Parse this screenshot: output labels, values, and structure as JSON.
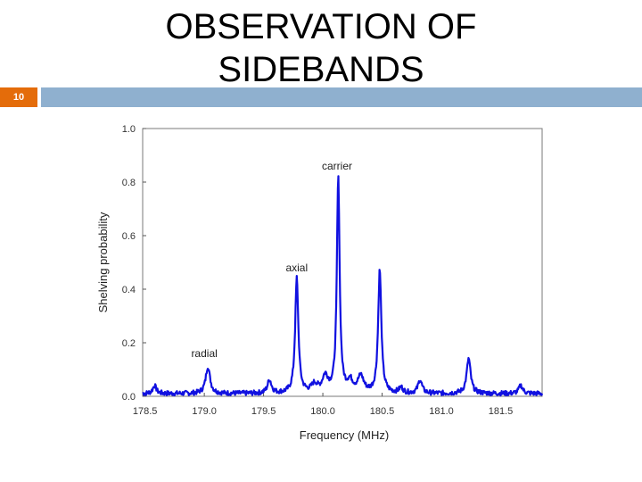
{
  "slide": {
    "title": "OBSERVATION OF SIDEBANDS",
    "number": "10",
    "accent_color": "#e46c0a",
    "bar_color": "#8fb0cf"
  },
  "chart_data": {
    "type": "line",
    "title": "",
    "xlabel": "Frequency (MHz)",
    "ylabel": "Shelving probability",
    "xlim": [
      178.48,
      181.85
    ],
    "ylim": [
      0.0,
      1.0
    ],
    "xticks": [
      178.5,
      179.0,
      179.5,
      180.0,
      180.5,
      181.0,
      181.5
    ],
    "xtick_labels": [
      "178.5",
      "179.0",
      "179.5",
      "180.0",
      "180.5",
      "181.0",
      "181.5"
    ],
    "yticks": [
      0.0,
      0.2,
      0.4,
      0.6,
      0.8,
      1.0
    ],
    "ytick_labels": [
      "0.0",
      "0.2",
      "0.4",
      "0.6",
      "0.8",
      "1.0"
    ],
    "grid": false,
    "line_color": "#1010e0",
    "baseline": 0.01,
    "peaks": [
      {
        "x": 178.58,
        "y": 0.03,
        "width": 0.018
      },
      {
        "x": 179.03,
        "y": 0.1,
        "width": 0.022
      },
      {
        "x": 179.55,
        "y": 0.05,
        "width": 0.02
      },
      {
        "x": 179.78,
        "y": 0.43,
        "width": 0.016
      },
      {
        "x": 179.93,
        "y": 0.03,
        "width": 0.03
      },
      {
        "x": 180.02,
        "y": 0.06,
        "width": 0.03
      },
      {
        "x": 180.13,
        "y": 0.8,
        "width": 0.014
      },
      {
        "x": 180.23,
        "y": 0.04,
        "width": 0.03
      },
      {
        "x": 180.32,
        "y": 0.06,
        "width": 0.03
      },
      {
        "x": 180.48,
        "y": 0.46,
        "width": 0.016
      },
      {
        "x": 180.66,
        "y": 0.02,
        "width": 0.02
      },
      {
        "x": 180.82,
        "y": 0.05,
        "width": 0.02
      },
      {
        "x": 181.23,
        "y": 0.13,
        "width": 0.02
      },
      {
        "x": 181.67,
        "y": 0.03,
        "width": 0.02
      }
    ],
    "annotations": [
      {
        "text": "carrier",
        "x": 180.12,
        "y": 0.82
      },
      {
        "text": "axial",
        "x": 179.78,
        "y": 0.44
      },
      {
        "text": "radial",
        "x": 179.0,
        "y": 0.12
      }
    ]
  }
}
